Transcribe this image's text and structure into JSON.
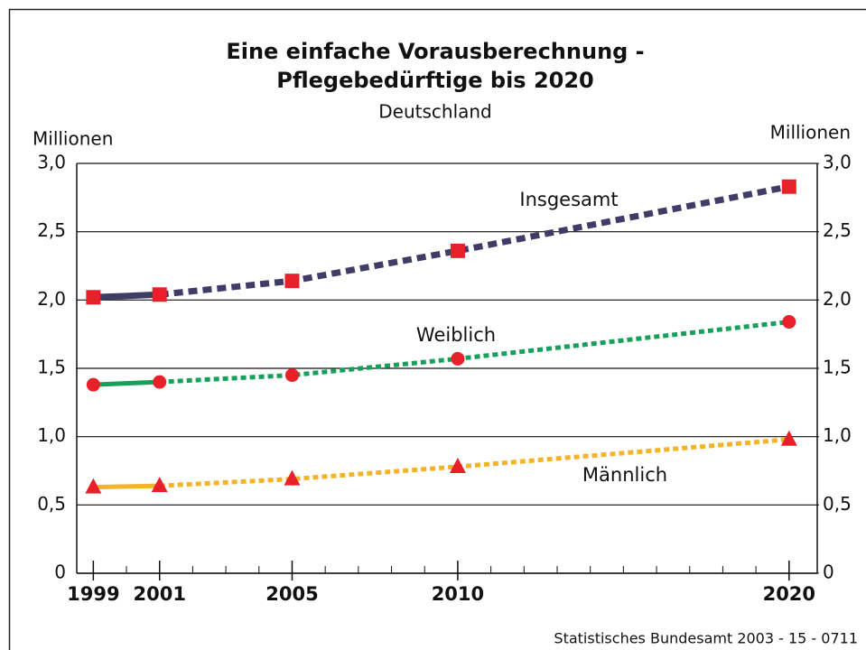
{
  "chart_data": {
    "type": "line",
    "title_lines": [
      "Eine einfache Vorausberechnung -",
      "Pflegebedürftige bis 2020"
    ],
    "subtitle": "Deutschland",
    "y_label": "Millionen",
    "y2_label": "Millionen",
    "source": "Statistisches Bundesamt 2003 - 15 - 0711",
    "x": [
      1999,
      2001,
      2005,
      2010,
      2020
    ],
    "xlim": [
      1998.5,
      2020.85
    ],
    "xticks": [
      1999,
      2001,
      2005,
      2010,
      2020
    ],
    "ylim": [
      0,
      3
    ],
    "yticks": [
      0,
      {
        "value": 0.5,
        "label": "0,5"
      },
      {
        "value": 1,
        "label": "1,0"
      },
      {
        "value": 1.5,
        "label": "1,5"
      },
      {
        "value": 2,
        "label": "2,0"
      },
      {
        "value": 2.5,
        "label": "2,5"
      },
      {
        "value": 3,
        "label": "3,0"
      }
    ],
    "y2lim": [
      0,
      3
    ],
    "y2ticks": [
      0,
      {
        "value": 0.5,
        "label": "0,5"
      },
      {
        "value": 1,
        "label": "1,0"
      },
      {
        "value": 1.5,
        "label": "1,5"
      },
      {
        "value": 2,
        "label": "2,0"
      },
      {
        "value": 2.5,
        "label": "2,5"
      },
      {
        "value": 3,
        "label": "3,0"
      }
    ],
    "grid": true,
    "solid_until": 2001,
    "marker_color": "#e8202a",
    "series": [
      {
        "name": "Insgesamt",
        "color": "#3f3d66",
        "marker": "square",
        "values": [
          2.02,
          2.04,
          2.14,
          2.36,
          2.83
        ]
      },
      {
        "name": "Weiblich",
        "color": "#17a05a",
        "marker": "circle",
        "values": [
          1.38,
          1.4,
          1.45,
          1.57,
          1.84
        ]
      },
      {
        "name": "Männlich",
        "color": "#f5b32a",
        "marker": "triangle",
        "values": [
          0.63,
          0.64,
          0.69,
          0.78,
          0.98
        ]
      }
    ]
  }
}
